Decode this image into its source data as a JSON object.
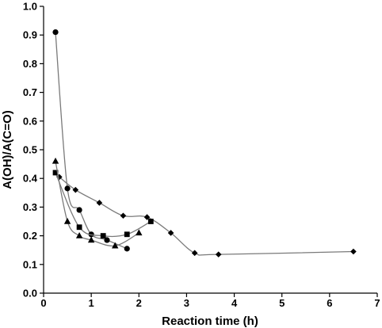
{
  "chart_data": {
    "type": "scatter",
    "xlabel": "Reaction time (h)",
    "ylabel": "A(OH)/A(C=O)",
    "xlim": [
      0,
      7
    ],
    "ylim": [
      0,
      1.0
    ],
    "xticks": [
      "0",
      "1",
      "2",
      "3",
      "4",
      "5",
      "6",
      "7"
    ],
    "yticks": [
      "0.0",
      "0.1",
      "0.2",
      "0.3",
      "0.4",
      "0.5",
      "0.6",
      "0.7",
      "0.8",
      "0.9",
      "1.0"
    ],
    "grid": false,
    "colors": {
      "marker": "#000000",
      "line": "#7a7a7a"
    },
    "series": [
      {
        "marker": "diamond",
        "x": [
          0.33,
          0.67,
          1.17,
          1.67,
          2.17,
          2.67,
          3.17,
          3.67,
          6.5
        ],
        "y": [
          0.405,
          0.36,
          0.315,
          0.27,
          0.265,
          0.21,
          0.14,
          0.135,
          0.145
        ]
      },
      {
        "marker": "circle",
        "x": [
          0.25,
          0.5,
          0.75,
          1.0,
          1.33,
          1.75
        ],
        "y": [
          0.91,
          0.365,
          0.29,
          0.205,
          0.185,
          0.155
        ]
      },
      {
        "marker": "square",
        "x": [
          0.25,
          0.75,
          1.25,
          1.75,
          2.25
        ],
        "y": [
          0.42,
          0.23,
          0.2,
          0.205,
          0.25
        ]
      },
      {
        "marker": "triangle",
        "x": [
          0.25,
          0.5,
          0.75,
          1.0,
          1.5,
          2.0
        ],
        "y": [
          0.46,
          0.25,
          0.2,
          0.185,
          0.165,
          0.21
        ]
      }
    ]
  }
}
